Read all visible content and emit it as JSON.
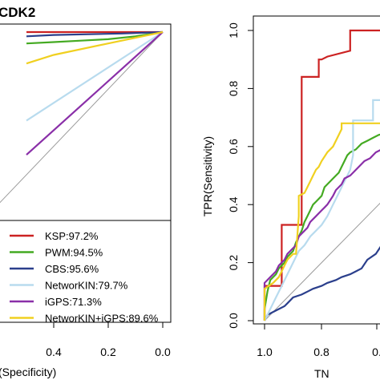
{
  "chart_data": [
    {
      "type": "line",
      "title": "CDK2",
      "xlabel": "(Specificity)",
      "x_ticks": [
        "0.4",
        "0.2",
        "0.0"
      ],
      "xlim": [
        1.0,
        0.0
      ],
      "ylim": [
        0.0,
        1.0
      ],
      "grid": false,
      "legend_position": "bottom-right",
      "series": [
        {
          "name": "KSP:97.2%",
          "color": "#cc2222",
          "x": [
            0.5,
            0.4,
            0.2,
            0.0
          ],
          "y": [
            1.0,
            1.0,
            1.0,
            1.0
          ]
        },
        {
          "name": "PWM:94.5%",
          "color": "#44aa22",
          "x": [
            0.5,
            0.4,
            0.3,
            0.2,
            0.1,
            0.0
          ],
          "y": [
            0.96,
            0.965,
            0.97,
            0.975,
            0.985,
            1.0
          ]
        },
        {
          "name": "CBS:95.6%",
          "color": "#2b3f8c",
          "x": [
            0.5,
            0.4,
            0.15,
            0.0
          ],
          "y": [
            0.985,
            0.99,
            0.995,
            1.0
          ]
        },
        {
          "name": "NetworKIN:79.7%",
          "color": "#b8dbee",
          "x": [
            0.5,
            0.0
          ],
          "y": [
            0.69,
            1.0
          ]
        },
        {
          "name": "iGPS:71.3%",
          "color": "#8a2fa8",
          "x": [
            0.5,
            0.0
          ],
          "y": [
            0.57,
            1.0
          ]
        },
        {
          "name": "NetworKIN+iGPS:89.6%",
          "color": "#f0d020",
          "x": [
            0.5,
            0.4,
            0.2,
            0.0
          ],
          "y": [
            0.89,
            0.92,
            0.96,
            1.0
          ]
        }
      ]
    },
    {
      "type": "line",
      "title": "",
      "xlabel": "TN",
      "ylabel": "TPR(Sensitivity)",
      "x_ticks": [
        "1.0",
        "0.8",
        "0."
      ],
      "y_ticks": [
        "0.0",
        "0.2",
        "0.4",
        "0.6",
        "0.8",
        "1.0"
      ],
      "xlim": [
        1.0,
        0.0
      ],
      "ylim": [
        0.0,
        1.0
      ],
      "grid": false,
      "series": [
        {
          "name": "KSP",
          "color": "#cc2222",
          "x": [
            1.0,
            1.0,
            0.94,
            0.94,
            0.87,
            0.87,
            0.81,
            0.81,
            0.8,
            0.78,
            0.7,
            0.7,
            0.0
          ],
          "y": [
            0.0,
            0.12,
            0.12,
            0.33,
            0.33,
            0.84,
            0.84,
            0.9,
            0.9,
            0.91,
            0.93,
            1.0,
            1.0
          ]
        },
        {
          "name": "PWM",
          "color": "#44aa22",
          "x": [
            1.0,
            1.0,
            0.99,
            0.98,
            0.96,
            0.95,
            0.93,
            0.92,
            0.9,
            0.89,
            0.88,
            0.87,
            0.86,
            0.85,
            0.84,
            0.83,
            0.82,
            0.8,
            0.79,
            0.78,
            0.76,
            0.74,
            0.73,
            0.72,
            0.71,
            0.7,
            0.68,
            0.66,
            0.64,
            0.62,
            0.6,
            0.58,
            0.56,
            0.54,
            0.52,
            0.5
          ],
          "y": [
            0.0,
            0.04,
            0.1,
            0.14,
            0.16,
            0.18,
            0.2,
            0.22,
            0.24,
            0.27,
            0.29,
            0.31,
            0.34,
            0.36,
            0.38,
            0.4,
            0.41,
            0.43,
            0.46,
            0.47,
            0.49,
            0.51,
            0.53,
            0.55,
            0.57,
            0.58,
            0.59,
            0.61,
            0.62,
            0.63,
            0.64,
            0.645,
            0.65,
            0.66,
            0.67,
            0.68
          ]
        },
        {
          "name": "CBS",
          "color": "#2b3f8c",
          "x": [
            1.0,
            0.99,
            0.97,
            0.95,
            0.93,
            0.92,
            0.9,
            0.87,
            0.85,
            0.83,
            0.8,
            0.78,
            0.75,
            0.73,
            0.7,
            0.68,
            0.66,
            0.64,
            0.61,
            0.59,
            0.57,
            0.55,
            0.53,
            0.51,
            0.5
          ],
          "y": [
            0.0,
            0.02,
            0.03,
            0.04,
            0.05,
            0.06,
            0.08,
            0.09,
            0.1,
            0.11,
            0.12,
            0.13,
            0.14,
            0.15,
            0.16,
            0.17,
            0.18,
            0.21,
            0.23,
            0.26,
            0.28,
            0.32,
            0.37,
            0.43,
            0.47
          ]
        },
        {
          "name": "NetworKIN",
          "color": "#b8dbee",
          "x": [
            1.0,
            0.98,
            0.96,
            0.94,
            0.92,
            0.9,
            0.88,
            0.86,
            0.84,
            0.82,
            0.8,
            0.78,
            0.76,
            0.74,
            0.72,
            0.7,
            0.69,
            0.69,
            0.62,
            0.62,
            0.5
          ],
          "y": [
            0.0,
            0.04,
            0.08,
            0.12,
            0.16,
            0.2,
            0.24,
            0.26,
            0.29,
            0.31,
            0.33,
            0.36,
            0.4,
            0.44,
            0.48,
            0.52,
            0.57,
            0.69,
            0.69,
            0.76,
            0.76
          ]
        },
        {
          "name": "iGPS",
          "color": "#8a2fa8",
          "x": [
            1.0,
            1.0,
            0.98,
            0.96,
            0.95,
            0.93,
            0.92,
            0.9,
            0.89,
            0.88,
            0.87,
            0.86,
            0.85,
            0.84,
            0.83,
            0.82,
            0.8,
            0.79,
            0.78,
            0.76,
            0.75,
            0.73,
            0.72,
            0.7,
            0.69,
            0.67,
            0.65,
            0.63,
            0.61,
            0.59,
            0.57,
            0.55,
            0.53,
            0.51,
            0.5
          ],
          "y": [
            0.0,
            0.13,
            0.15,
            0.17,
            0.19,
            0.21,
            0.23,
            0.25,
            0.26,
            0.29,
            0.3,
            0.31,
            0.32,
            0.34,
            0.35,
            0.36,
            0.38,
            0.39,
            0.4,
            0.43,
            0.45,
            0.47,
            0.49,
            0.5,
            0.51,
            0.53,
            0.55,
            0.56,
            0.58,
            0.59,
            0.6,
            0.61,
            0.62,
            0.62,
            0.63
          ]
        },
        {
          "name": "NetworKIN+iGPS",
          "color": "#f0d020",
          "x": [
            1.0,
            1.0,
            0.97,
            0.95,
            0.93,
            0.92,
            0.9,
            0.89,
            0.88,
            0.88,
            0.86,
            0.85,
            0.84,
            0.83,
            0.82,
            0.81,
            0.8,
            0.78,
            0.76,
            0.74,
            0.73,
            0.73,
            0.5
          ],
          "y": [
            0.0,
            0.11,
            0.13,
            0.15,
            0.19,
            0.21,
            0.23,
            0.23,
            0.36,
            0.43,
            0.44,
            0.46,
            0.48,
            0.5,
            0.52,
            0.53,
            0.55,
            0.58,
            0.6,
            0.64,
            0.66,
            0.68,
            0.68
          ]
        }
      ]
    }
  ]
}
